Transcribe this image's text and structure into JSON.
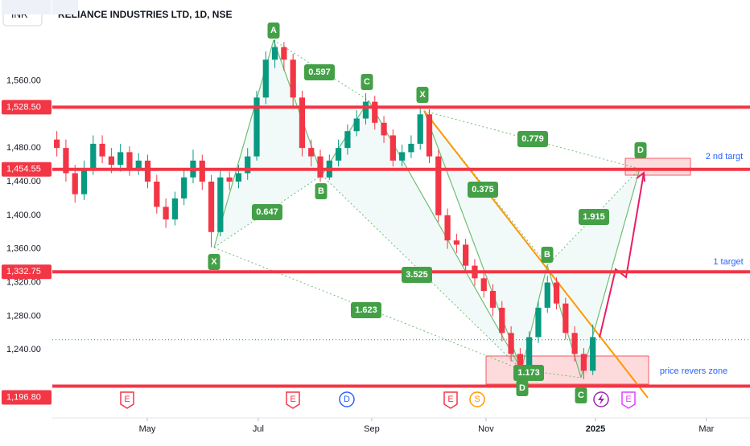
{
  "chart_data": {
    "type": "candlestick",
    "currency": "INR",
    "title": "RELIANCE INDUSTRIES LTD, 1D, NSE",
    "up_color": "#089981",
    "down_color": "#f23645",
    "level_color": "#f23645",
    "ylim": [
      1159,
      1656
    ],
    "yticks": [
      {
        "value": 1560,
        "label": "1,560.00"
      },
      {
        "value": 1480,
        "label": "1,480.00"
      },
      {
        "value": 1440,
        "label": "1,440.00"
      },
      {
        "value": 1400,
        "label": "1,400.00"
      },
      {
        "value": 1360,
        "label": "1,360.00"
      },
      {
        "value": 1320,
        "label": "1,320.00"
      },
      {
        "value": 1280,
        "label": "1,280.00"
      },
      {
        "value": 1240,
        "label": "1,240.00"
      }
    ],
    "xlim": [
      -0.5,
      76.3
    ],
    "xticks": [
      {
        "value": 9.95,
        "label": "May"
      },
      {
        "value": 22.17,
        "label": "Jul"
      },
      {
        "value": 34.66,
        "label": "Sep"
      },
      {
        "value": 47.24,
        "label": "Nov"
      },
      {
        "value": 59.29,
        "label": "2025"
      },
      {
        "value": 71.5,
        "label": "Mar"
      }
    ],
    "grid": false,
    "high": [
      1500,
      1490,
      1460,
      1465,
      1495,
      1495,
      1480,
      1485,
      1482,
      1474,
      1472,
      1448,
      1420,
      1428,
      1455,
      1478,
      1472,
      1448,
      1455,
      1452,
      1460,
      1480,
      1548,
      1595,
      1608.8,
      1606,
      1592,
      1548,
      1490,
      1478,
      1472,
      1490,
      1508,
      1525,
      1545,
      1542,
      1518,
      1502,
      1484,
      1495,
      1530,
      1526,
      1478,
      1408,
      1378,
      1372,
      1348,
      1334,
      1318,
      1298,
      1268,
      1242,
      1262,
      1298,
      1328,
      1326,
      1302,
      1268,
      1242,
      1270
    ],
    "low": [
      1470,
      1440,
      1415,
      1418,
      1448,
      1462,
      1450,
      1452,
      1447,
      1448,
      1432,
      1402,
      1385,
      1388,
      1412,
      1438,
      1430,
      1362,
      1375,
      1430,
      1432,
      1442,
      1465,
      1532,
      1575,
      1572,
      1530,
      1470,
      1458,
      1440,
      1442,
      1458,
      1472,
      1494,
      1508,
      1502,
      1486,
      1458,
      1458,
      1468,
      1478,
      1462,
      1392,
      1360,
      1355,
      1332,
      1316,
      1302,
      1280,
      1250,
      1226,
      1201.5,
      1212,
      1248,
      1284,
      1288,
      1252,
      1226,
      1205,
      1210
    ],
    "levels": [
      {
        "value": 1528.5,
        "label": "1,528.50"
      },
      {
        "value": 1454.55,
        "label": "1,454.55"
      },
      {
        "value": 1332.75,
        "label": "1,332.75"
      },
      {
        "value": 1196.8,
        "label": "1,196.80"
      }
    ],
    "price_line": 1252,
    "open": [
      1490,
      1480,
      1450,
      1425,
      1455,
      1485,
      1470,
      1460,
      1475,
      1455,
      1465,
      1440,
      1410,
      1395,
      1420,
      1445,
      1465,
      1440,
      1380,
      1445,
      1440,
      1450,
      1470,
      1540,
      1585,
      1600,
      1585,
      1540,
      1480,
      1470,
      1445,
      1465,
      1480,
      1500,
      1515,
      1535,
      1510,
      1495,
      1465,
      1475,
      1485,
      1520,
      1470,
      1400,
      1370,
      1365,
      1340,
      1325,
      1310,
      1290,
      1260,
      1235,
      1220,
      1255,
      1290,
      1320,
      1295,
      1260,
      1235,
      1215
    ],
    "close": [
      1480,
      1450,
      1425,
      1455,
      1485,
      1470,
      1460,
      1475,
      1455,
      1465,
      1440,
      1410,
      1395,
      1420,
      1445,
      1465,
      1440,
      1380,
      1445,
      1440,
      1450,
      1470,
      1540,
      1585,
      1600,
      1585,
      1540,
      1480,
      1470,
      1445,
      1465,
      1480,
      1500,
      1515,
      1535,
      1510,
      1495,
      1465,
      1475,
      1485,
      1520,
      1470,
      1400,
      1370,
      1365,
      1340,
      1325,
      1310,
      1290,
      1260,
      1235,
      1220,
      1255,
      1290,
      1320,
      1295,
      1260,
      1235,
      1215,
      1255
    ],
    "annotations": [
      "A",
      "0.597",
      "C",
      "X",
      "0.779",
      "D",
      "2 nd targt",
      "B",
      "0.375",
      "0.647",
      "1.915",
      "X",
      "B",
      "1 target",
      "3.525",
      "1.623",
      "1.173",
      "D",
      "C",
      "price revers zone"
    ],
    "events": [
      "E",
      "E",
      "D",
      "E",
      "S",
      "E"
    ]
  }
}
